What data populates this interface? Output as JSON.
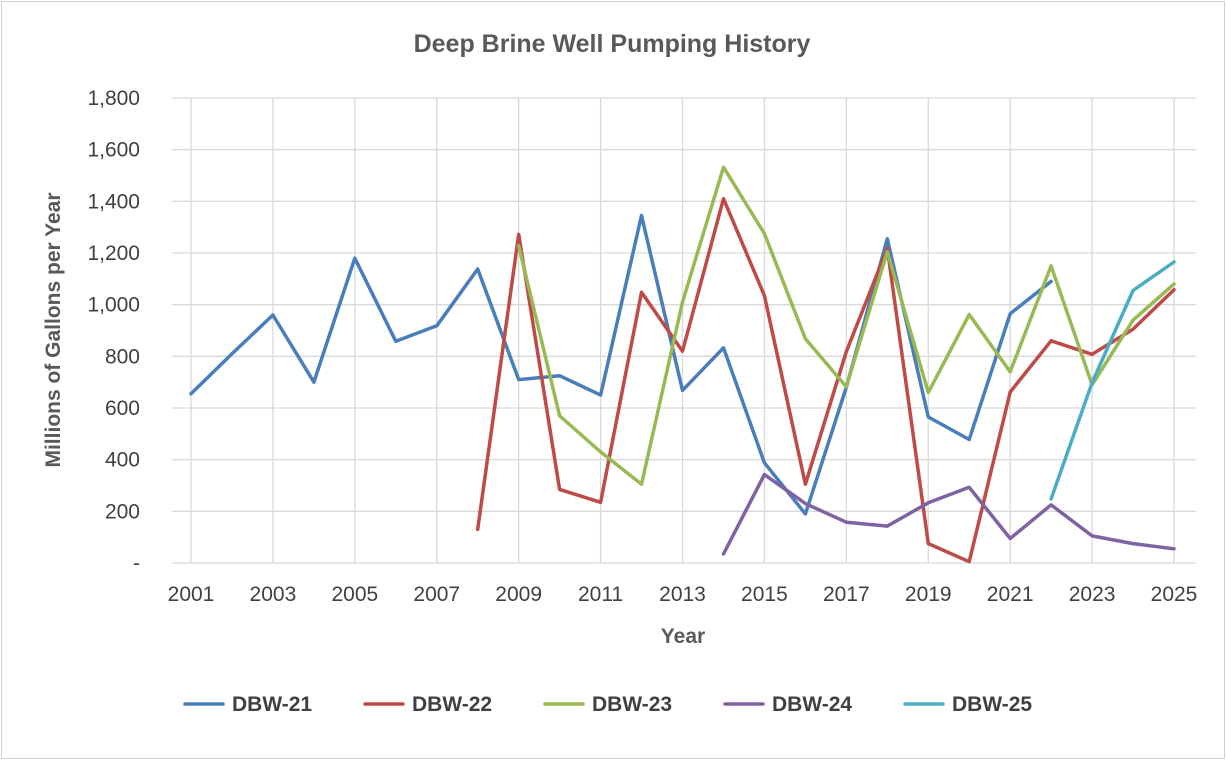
{
  "chart_data": {
    "type": "line",
    "title": "Deep Brine Well Pumping History",
    "xlabel": "Year",
    "ylabel": "Millions of Gallons per Year",
    "xlim": [
      2001,
      2025
    ],
    "ylim": [
      0,
      1800
    ],
    "x_ticks": [
      2001,
      2003,
      2005,
      2007,
      2009,
      2011,
      2013,
      2015,
      2017,
      2019,
      2021,
      2023,
      2025
    ],
    "y_ticks": [
      {
        "value": 0,
        "label": "-"
      },
      {
        "value": 200,
        "label": "200"
      },
      {
        "value": 400,
        "label": "400"
      },
      {
        "value": 600,
        "label": "600"
      },
      {
        "value": 800,
        "label": "800"
      },
      {
        "value": 1000,
        "label": "1,000"
      },
      {
        "value": 1200,
        "label": "1,200"
      },
      {
        "value": 1400,
        "label": "1,400"
      },
      {
        "value": 1600,
        "label": "1,600"
      },
      {
        "value": 1800,
        "label": "1,800"
      }
    ],
    "grid": true,
    "legend_position": "bottom",
    "series": [
      {
        "name": "DBW-21",
        "color": "#4a7ebb",
        "points": [
          [
            2001,
            655
          ],
          [
            2002,
            810
          ],
          [
            2003,
            960
          ],
          [
            2004,
            700
          ],
          [
            2005,
            1180
          ],
          [
            2006,
            858
          ],
          [
            2007,
            918
          ],
          [
            2008,
            1138
          ],
          [
            2009,
            710
          ],
          [
            2010,
            725
          ],
          [
            2011,
            650
          ],
          [
            2012,
            1345
          ],
          [
            2013,
            668
          ],
          [
            2014,
            833
          ],
          [
            2015,
            388
          ],
          [
            2016,
            190
          ],
          [
            2017,
            680
          ],
          [
            2018,
            1255
          ],
          [
            2019,
            565
          ],
          [
            2020,
            478
          ],
          [
            2021,
            965
          ],
          [
            2022,
            1090
          ]
        ]
      },
      {
        "name": "DBW-22",
        "color": "#be4b48",
        "points": [
          [
            2008,
            130
          ],
          [
            2009,
            1272
          ],
          [
            2010,
            285
          ],
          [
            2011,
            235
          ],
          [
            2012,
            1048
          ],
          [
            2013,
            820
          ],
          [
            2014,
            1410
          ],
          [
            2015,
            1035
          ],
          [
            2016,
            305
          ],
          [
            2017,
            818
          ],
          [
            2018,
            1218
          ],
          [
            2019,
            75
          ],
          [
            2020,
            5
          ],
          [
            2021,
            662
          ],
          [
            2022,
            860
          ],
          [
            2023,
            808
          ],
          [
            2024,
            905
          ],
          [
            2025,
            1058
          ]
        ]
      },
      {
        "name": "DBW-23",
        "color": "#98b954",
        "points": [
          [
            2009,
            1228
          ],
          [
            2010,
            570
          ],
          [
            2011,
            430
          ],
          [
            2012,
            305
          ],
          [
            2013,
            1010
          ],
          [
            2014,
            1532
          ],
          [
            2015,
            1275
          ],
          [
            2016,
            868
          ],
          [
            2017,
            682
          ],
          [
            2018,
            1205
          ],
          [
            2019,
            660
          ],
          [
            2020,
            962
          ],
          [
            2021,
            740
          ],
          [
            2022,
            1150
          ],
          [
            2023,
            690
          ],
          [
            2024,
            940
          ],
          [
            2025,
            1080
          ]
        ]
      },
      {
        "name": "DBW-24",
        "color": "#7e62a1",
        "points": [
          [
            2014,
            35
          ],
          [
            2015,
            342
          ],
          [
            2016,
            230
          ],
          [
            2017,
            158
          ],
          [
            2018,
            143
          ],
          [
            2019,
            233
          ],
          [
            2020,
            293
          ],
          [
            2021,
            95
          ],
          [
            2022,
            225
          ],
          [
            2023,
            105
          ],
          [
            2024,
            75
          ],
          [
            2025,
            55
          ]
        ]
      },
      {
        "name": "DBW-25",
        "color": "#4bacc6",
        "points": [
          [
            2022,
            248
          ],
          [
            2023,
            698
          ],
          [
            2024,
            1055
          ],
          [
            2025,
            1165
          ]
        ]
      }
    ]
  }
}
